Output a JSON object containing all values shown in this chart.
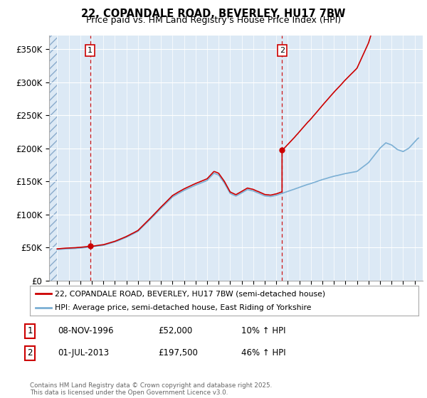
{
  "title1": "22, COPANDALE ROAD, BEVERLEY, HU17 7BW",
  "title2": "Price paid vs. HM Land Registry's House Price Index (HPI)",
  "background_color": "#dce9f5",
  "hatch_bg_color": "#c8d8e8",
  "xlim_start": 1993.3,
  "xlim_end": 2025.7,
  "ylim_min": 0,
  "ylim_max": 370000,
  "yticks": [
    0,
    50000,
    100000,
    150000,
    200000,
    250000,
    300000,
    350000
  ],
  "ytick_labels": [
    "£0",
    "£50K",
    "£100K",
    "£150K",
    "£200K",
    "£250K",
    "£300K",
    "£350K"
  ],
  "sale1_x": 1996.85,
  "sale1_y": 52000,
  "sale2_x": 2013.5,
  "sale2_y": 197500,
  "legend_line1": "22, COPANDALE ROAD, BEVERLEY, HU17 7BW (semi-detached house)",
  "legend_line2": "HPI: Average price, semi-detached house, East Riding of Yorkshire",
  "table_row1": [
    "1",
    "08-NOV-1996",
    "£52,000",
    "10% ↑ HPI"
  ],
  "table_row2": [
    "2",
    "01-JUL-2013",
    "£197,500",
    "46% ↑ HPI"
  ],
  "footer": "Contains HM Land Registry data © Crown copyright and database right 2025.\nThis data is licensed under the Open Government Licence v3.0.",
  "line_color_red": "#cc0000",
  "line_color_blue": "#7bafd4",
  "grid_color": "#ffffff",
  "spine_color": "#aaaaaa"
}
